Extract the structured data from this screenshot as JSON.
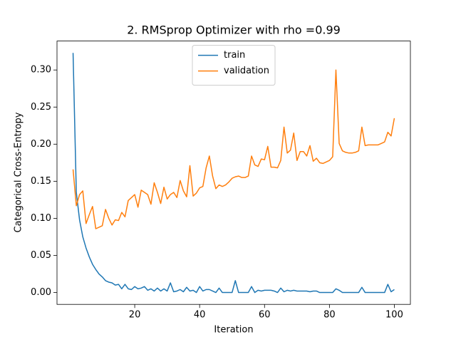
{
  "chart_data": {
    "type": "line",
    "title": "2. RMSprop Optimizer with rho =0.99",
    "x_label": "Iteration",
    "y_label": "Categorical Cross-Entropy",
    "x": [
      1,
      2,
      3,
      4,
      5,
      6,
      7,
      8,
      9,
      10,
      11,
      12,
      13,
      14,
      15,
      16,
      17,
      18,
      19,
      20,
      21,
      22,
      23,
      24,
      25,
      26,
      27,
      28,
      29,
      30,
      31,
      32,
      33,
      34,
      35,
      36,
      37,
      38,
      39,
      40,
      41,
      42,
      43,
      44,
      45,
      46,
      47,
      48,
      49,
      50,
      51,
      52,
      53,
      54,
      55,
      56,
      57,
      58,
      59,
      60,
      61,
      62,
      63,
      64,
      65,
      66,
      67,
      68,
      69,
      70,
      71,
      72,
      73,
      74,
      75,
      76,
      77,
      78,
      79,
      80,
      81,
      82,
      83,
      84,
      85,
      86,
      87,
      88,
      89,
      90,
      91,
      92,
      93,
      94,
      95,
      96,
      97,
      98,
      99,
      100
    ],
    "series": [
      {
        "name": "train",
        "color": "#1f77b4",
        "values": [
          0.323,
          0.135,
          0.098,
          0.075,
          0.06,
          0.048,
          0.038,
          0.031,
          0.025,
          0.021,
          0.016,
          0.014,
          0.013,
          0.01,
          0.011,
          0.005,
          0.011,
          0.005,
          0.004,
          0.008,
          0.005,
          0.006,
          0.008,
          0.003,
          0.005,
          0.002,
          0.006,
          0.002,
          0.005,
          0.002,
          0.013,
          0.001,
          0.002,
          0.004,
          0.001,
          0.007,
          0.002,
          0.003,
          0.0,
          0.008,
          0.002,
          0.004,
          0.004,
          0.002,
          0.0,
          0.006,
          0.0,
          0.0,
          0.0,
          0.0,
          0.016,
          0.0,
          0.0,
          0.0,
          0.0,
          0.008,
          0.0,
          0.003,
          0.002,
          0.003,
          0.003,
          0.003,
          0.002,
          0.0,
          0.006,
          0.001,
          0.003,
          0.002,
          0.003,
          0.002,
          0.002,
          0.002,
          0.002,
          0.001,
          0.002,
          0.002,
          0.0,
          0.0,
          0.0,
          0.0,
          0.0,
          0.005,
          0.003,
          0.0,
          0.0,
          0.0,
          0.0,
          0.0,
          0.0,
          0.007,
          0.0,
          0.0,
          0.0,
          0.0,
          0.0,
          0.0,
          0.0,
          0.011,
          0.001,
          0.004
        ]
      },
      {
        "name": "validation",
        "color": "#ff7f0e",
        "values": [
          0.166,
          0.117,
          0.132,
          0.137,
          0.093,
          0.105,
          0.116,
          0.086,
          0.088,
          0.09,
          0.112,
          0.1,
          0.091,
          0.098,
          0.097,
          0.108,
          0.102,
          0.124,
          0.128,
          0.132,
          0.115,
          0.138,
          0.135,
          0.132,
          0.119,
          0.148,
          0.135,
          0.12,
          0.142,
          0.126,
          0.132,
          0.135,
          0.128,
          0.151,
          0.137,
          0.129,
          0.171,
          0.13,
          0.134,
          0.141,
          0.143,
          0.168,
          0.184,
          0.157,
          0.14,
          0.145,
          0.143,
          0.145,
          0.149,
          0.154,
          0.156,
          0.157,
          0.155,
          0.155,
          0.157,
          0.184,
          0.172,
          0.17,
          0.18,
          0.179,
          0.197,
          0.169,
          0.169,
          0.168,
          0.178,
          0.223,
          0.188,
          0.192,
          0.215,
          0.178,
          0.19,
          0.19,
          0.184,
          0.198,
          0.177,
          0.181,
          0.175,
          0.174,
          0.176,
          0.178,
          0.183,
          0.3,
          0.201,
          0.191,
          0.189,
          0.188,
          0.188,
          0.189,
          0.191,
          0.223,
          0.198,
          0.199,
          0.199,
          0.199,
          0.199,
          0.201,
          0.203,
          0.216,
          0.211,
          0.235
        ]
      }
    ],
    "xlim": [
      -3.95,
      104.95
    ],
    "xticks": [
      20,
      40,
      60,
      80,
      100
    ],
    "ylim": [
      -0.016,
      0.339
    ],
    "yticks": [
      {
        "value": 0,
        "label": "0.00"
      },
      0.05,
      {
        "value": 0.1,
        "label": "0.10"
      },
      0.15,
      {
        "value": 0.2,
        "label": "0.20"
      },
      0.25,
      {
        "value": 0.3,
        "label": "0.30"
      }
    ],
    "legend": "upper center"
  }
}
